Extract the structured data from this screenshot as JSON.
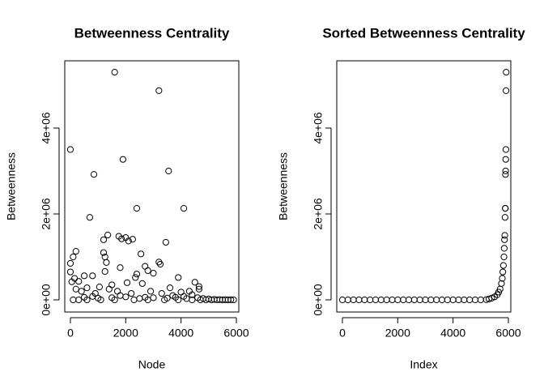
{
  "chart_data": [
    {
      "type": "scatter",
      "title": "Betweenness Centrality",
      "x_label": "Node",
      "y_label": "Betweenness",
      "xlim": [
        -204,
        6088
      ],
      "ylim": [
        -283000,
        5566000
      ],
      "xticks": [
        0,
        2000,
        4000,
        6000
      ],
      "yticks": [
        {
          "value": 0,
          "label": "0e+00"
        },
        {
          "value": 2000000,
          "label": "2e+06"
        },
        {
          "value": 4000000,
          "label": "4e+06"
        }
      ],
      "color": "#000000",
      "x": [
        1600,
        3200,
        0,
        1900,
        3550,
        850,
        700,
        2400,
        4100,
        1350,
        1750,
        2000,
        1850,
        2250,
        1200,
        2100,
        3450,
        200,
        1200,
        1250,
        100,
        2550,
        0,
        3200,
        3250,
        1300,
        1800,
        2700,
        0,
        500,
        800,
        1250,
        2800,
        3000,
        2400,
        2350,
        3900,
        150,
        300,
        50,
        4500,
        2050,
        2600,
        1050,
        600,
        1500,
        4650,
        4650,
        3600,
        4300,
        4000,
        200,
        400,
        900,
        1400,
        1700,
        2200,
        2900,
        3300,
        3700,
        4100,
        4400,
        4800,
        5000,
        5200,
        5400,
        5600,
        5800,
        500,
        1000,
        1500,
        2000,
        2500,
        3000,
        3500,
        4200,
        800,
        1800,
        2700,
        3800,
        4600,
        100,
        300,
        600,
        1100,
        1600,
        2300,
        2800,
        3400,
        3900,
        4400,
        4700,
        4900,
        5100,
        5300,
        5500,
        5700,
        5900
      ],
      "values": [
        5300000,
        4870000,
        3500000,
        3270000,
        3000000,
        2920000,
        1920000,
        2130000,
        2130000,
        1510000,
        1480000,
        1450000,
        1420000,
        1410000,
        1400000,
        1370000,
        1340000,
        1130000,
        1100000,
        1000000,
        1000000,
        1070000,
        850000,
        880000,
        830000,
        870000,
        750000,
        780000,
        650000,
        560000,
        560000,
        660000,
        680000,
        620000,
        600000,
        520000,
        520000,
        500000,
        430000,
        420000,
        410000,
        400000,
        380000,
        300000,
        280000,
        350000,
        310000,
        250000,
        280000,
        200000,
        180000,
        250000,
        200000,
        150000,
        250000,
        200000,
        150000,
        200000,
        150000,
        100000,
        80000,
        120000,
        30000,
        20000,
        10000,
        5000,
        3000,
        2000,
        60000,
        40000,
        50000,
        70000,
        30000,
        50000,
        40000,
        30000,
        80000,
        100000,
        60000,
        60000,
        50000,
        0,
        0,
        0,
        0,
        0,
        0,
        0,
        0,
        0,
        0,
        0,
        0,
        0,
        0,
        0,
        0,
        0
      ]
    },
    {
      "type": "scatter",
      "title": "Sorted Betweenness Centrality",
      "x_label": "Index",
      "y_label": "Betweenness",
      "xlim": [
        -204,
        6088
      ],
      "ylim": [
        -283000,
        5566000
      ],
      "xticks": [
        0,
        2000,
        4000,
        6000
      ],
      "yticks": [
        {
          "value": 0,
          "label": "0e+00"
        },
        {
          "value": 2000000,
          "label": "2e+06"
        },
        {
          "value": 4000000,
          "label": "4e+06"
        }
      ],
      "color": "#000000",
      "x": [
        0,
        200,
        400,
        600,
        800,
        1000,
        1200,
        1400,
        1600,
        1800,
        2000,
        2200,
        2400,
        2600,
        2800,
        3000,
        3200,
        3400,
        3600,
        3800,
        4000,
        4200,
        4400,
        4600,
        4800,
        5000,
        5200,
        5300,
        5400,
        5500,
        5600,
        5650,
        5700,
        5750,
        5780,
        5800,
        5820,
        5840,
        5850,
        5860,
        5870,
        5880,
        5885,
        5890,
        5895,
        5900,
        5905,
        5910,
        5915,
        5920
      ],
      "values": [
        0,
        0,
        0,
        0,
        0,
        0,
        0,
        0,
        0,
        0,
        0,
        0,
        0,
        0,
        0,
        0,
        0,
        0,
        0,
        0,
        0,
        0,
        0,
        0,
        0,
        0,
        5000,
        20000,
        40000,
        70000,
        120000,
        180000,
        250000,
        380000,
        500000,
        650000,
        800000,
        1000000,
        1200000,
        1400000,
        1500000,
        1920000,
        2130000,
        2130000,
        2920000,
        3000000,
        3270000,
        3500000,
        4870000,
        5300000
      ]
    }
  ]
}
